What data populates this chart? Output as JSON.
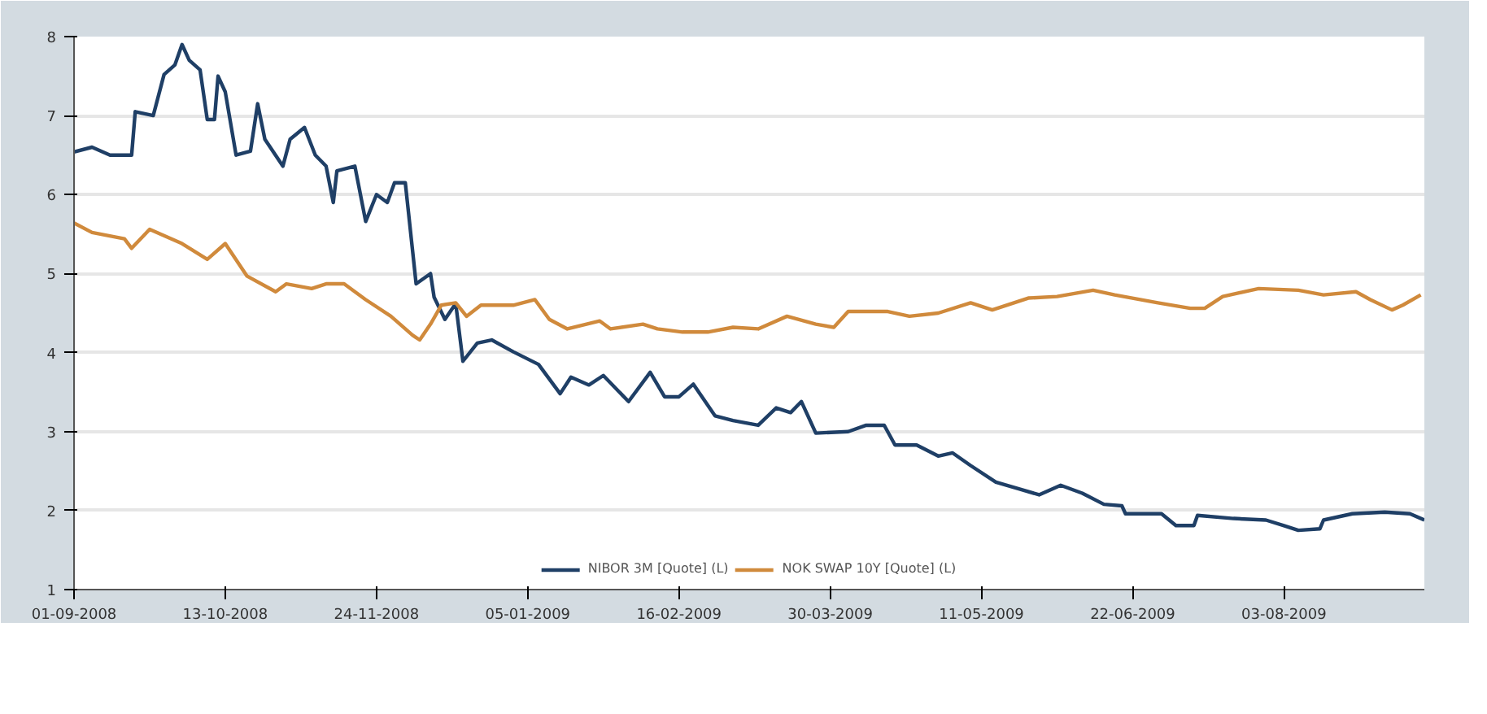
{
  "chart_data": {
    "type": "line",
    "xlim": [
      "2008-09-01",
      "2009-09-11"
    ],
    "xticks": [
      {
        "value": "2008-09-01",
        "label": "01-09-2008"
      },
      {
        "value": "2008-10-13",
        "label": "13-10-2008"
      },
      {
        "value": "2008-11-24",
        "label": "24-11-2008"
      },
      {
        "value": "2009-01-05",
        "label": "05-01-2009"
      },
      {
        "value": "2009-02-16",
        "label": "16-02-2009"
      },
      {
        "value": "2009-03-30",
        "label": "30-03-2009"
      },
      {
        "value": "2009-05-11",
        "label": "11-05-2009"
      },
      {
        "value": "2009-06-22",
        "label": "22-06-2009"
      },
      {
        "value": "2009-08-03",
        "label": "03-08-2009"
      }
    ],
    "ylim": [
      1,
      8
    ],
    "yticks": [
      1,
      2,
      3,
      4,
      5,
      6,
      7,
      8
    ],
    "grid": "y",
    "legend": "bottom",
    "marker": "none",
    "line_style": "solid",
    "series": [
      {
        "name": "NIBOR 3M [Quote] (L)",
        "color": "#1f3f66",
        "x": [
          "2008-09-01",
          "2008-09-06",
          "2008-09-11",
          "2008-09-15",
          "2008-09-17",
          "2008-09-18",
          "2008-09-23",
          "2008-09-26",
          "2008-09-29",
          "2008-10-01",
          "2008-10-03",
          "2008-10-06",
          "2008-10-08",
          "2008-10-10",
          "2008-10-11",
          "2008-10-13",
          "2008-10-16",
          "2008-10-20",
          "2008-10-22",
          "2008-10-24",
          "2008-10-29",
          "2008-10-31",
          "2008-11-04",
          "2008-11-07",
          "2008-11-10",
          "2008-11-12",
          "2008-11-13",
          "2008-11-18",
          "2008-11-21",
          "2008-11-24",
          "2008-11-27",
          "2008-11-29",
          "2008-12-02",
          "2008-12-05",
          "2008-12-09",
          "2008-12-10",
          "2008-12-13",
          "2008-12-16",
          "2008-12-18",
          "2008-12-22",
          "2008-12-26",
          "2009-01-01",
          "2009-01-08",
          "2009-01-14",
          "2009-01-17",
          "2009-01-22",
          "2009-01-26",
          "2009-02-02",
          "2009-02-08",
          "2009-02-12",
          "2009-02-16",
          "2009-02-20",
          "2009-02-26",
          "2009-03-03",
          "2009-03-10",
          "2009-03-15",
          "2009-03-19",
          "2009-03-22",
          "2009-03-26",
          "2009-04-04",
          "2009-04-09",
          "2009-04-14",
          "2009-04-17",
          "2009-04-23",
          "2009-04-29",
          "2009-05-03",
          "2009-05-08",
          "2009-05-15",
          "2009-05-21",
          "2009-05-27",
          "2009-06-02",
          "2009-06-08",
          "2009-06-14",
          "2009-06-19",
          "2009-06-20",
          "2009-06-30",
          "2009-07-04",
          "2009-07-09",
          "2009-07-10",
          "2009-07-20",
          "2009-07-29",
          "2009-08-03",
          "2009-08-07",
          "2009-08-13",
          "2009-08-14",
          "2009-08-22",
          "2009-08-31",
          "2009-09-07",
          "2009-09-11"
        ],
        "values": [
          6.54,
          6.6,
          6.5,
          6.5,
          6.5,
          7.05,
          7.0,
          7.52,
          7.64,
          7.9,
          7.7,
          7.58,
          6.95,
          6.95,
          7.5,
          7.3,
          6.5,
          6.55,
          7.15,
          6.7,
          6.36,
          6.7,
          6.85,
          6.5,
          6.36,
          5.9,
          6.3,
          6.36,
          5.66,
          6.0,
          5.9,
          6.15,
          6.15,
          4.87,
          5.0,
          4.7,
          4.42,
          4.62,
          3.89,
          4.12,
          4.16,
          4.01,
          3.85,
          3.48,
          3.69,
          3.59,
          3.71,
          3.38,
          3.75,
          3.44,
          3.44,
          3.6,
          3.2,
          3.14,
          3.08,
          3.3,
          3.24,
          3.38,
          2.98,
          3.0,
          3.08,
          3.08,
          2.83,
          2.83,
          2.69,
          2.73,
          2.57,
          2.36,
          2.28,
          2.2,
          2.32,
          2.22,
          2.08,
          2.06,
          1.96,
          1.96,
          1.81,
          1.81,
          1.94,
          1.9,
          1.88,
          1.81,
          1.75,
          1.77,
          1.88,
          1.96,
          1.98,
          1.96,
          1.88
        ]
      },
      {
        "name": "NOK SWAP 10Y [Quote] (L)",
        "color": "#d08a3c",
        "x": [
          "2008-09-01",
          "2008-09-06",
          "2008-09-15",
          "2008-09-17",
          "2008-09-22",
          "2008-10-01",
          "2008-10-08",
          "2008-10-13",
          "2008-10-19",
          "2008-10-27",
          "2008-10-30",
          "2008-11-06",
          "2008-11-10",
          "2008-11-15",
          "2008-11-21",
          "2008-11-28",
          "2008-12-04",
          "2008-12-06",
          "2008-12-09",
          "2008-12-12",
          "2008-12-16",
          "2008-12-19",
          "2008-12-23",
          "2009-01-01",
          "2009-01-07",
          "2009-01-11",
          "2009-01-16",
          "2009-01-25",
          "2009-01-28",
          "2009-02-06",
          "2009-02-10",
          "2009-02-17",
          "2009-02-24",
          "2009-03-03",
          "2009-03-10",
          "2009-03-18",
          "2009-03-26",
          "2009-03-31",
          "2009-04-04",
          "2009-04-15",
          "2009-04-21",
          "2009-04-29",
          "2009-05-08",
          "2009-05-14",
          "2009-05-24",
          "2009-06-01",
          "2009-06-11",
          "2009-06-17",
          "2009-06-29",
          "2009-07-08",
          "2009-07-12",
          "2009-07-17",
          "2009-07-27",
          "2009-08-07",
          "2009-08-14",
          "2009-08-23",
          "2009-08-27",
          "2009-09-02",
          "2009-09-05",
          "2009-09-10"
        ],
        "values": [
          5.64,
          5.52,
          5.44,
          5.32,
          5.56,
          5.38,
          5.18,
          5.38,
          4.97,
          4.77,
          4.87,
          4.81,
          4.87,
          4.87,
          4.67,
          4.46,
          4.22,
          4.16,
          4.36,
          4.6,
          4.63,
          4.46,
          4.6,
          4.6,
          4.67,
          4.42,
          4.3,
          4.4,
          4.3,
          4.36,
          4.3,
          4.26,
          4.26,
          4.32,
          4.3,
          4.46,
          4.36,
          4.32,
          4.52,
          4.52,
          4.46,
          4.5,
          4.63,
          4.54,
          4.69,
          4.71,
          4.79,
          4.73,
          4.63,
          4.56,
          4.56,
          4.71,
          4.81,
          4.79,
          4.73,
          4.77,
          4.67,
          4.54,
          4.6,
          4.73
        ]
      }
    ]
  }
}
